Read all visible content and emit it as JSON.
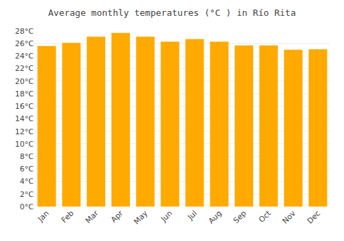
{
  "chart_data": {
    "type": "bar",
    "title": "Average monthly temperatures (°C ) in Río Rita",
    "categories": [
      "Jan",
      "Feb",
      "Mar",
      "Apr",
      "May",
      "Jun",
      "Jul",
      "Aug",
      "Sep",
      "Oct",
      "Nov",
      "Dec"
    ],
    "values": [
      25.6,
      26.1,
      27.1,
      27.7,
      27.1,
      26.3,
      26.7,
      26.3,
      25.7,
      25.7,
      25.0,
      25.1
    ],
    "color": "#FFAA00",
    "ylim": [
      0,
      28
    ],
    "yticks": [
      {
        "value": 0,
        "label": "0°C"
      },
      {
        "value": 2,
        "label": "2°C"
      },
      {
        "value": 4,
        "label": "4°C"
      },
      {
        "value": 6,
        "label": "6°C"
      },
      {
        "value": 8,
        "label": "8°C"
      },
      {
        "value": 10,
        "label": "10°C"
      },
      {
        "value": 12,
        "label": "12°C"
      },
      {
        "value": 14,
        "label": "14°C"
      },
      {
        "value": 16,
        "label": "16°C"
      },
      {
        "value": 18,
        "label": "18°C"
      },
      {
        "value": 20,
        "label": "20°C"
      },
      {
        "value": 22,
        "label": "22°C"
      },
      {
        "value": 24,
        "label": "24°C"
      },
      {
        "value": 26,
        "label": "26°C"
      },
      {
        "value": 28,
        "label": "28°C"
      }
    ],
    "grid": true
  }
}
